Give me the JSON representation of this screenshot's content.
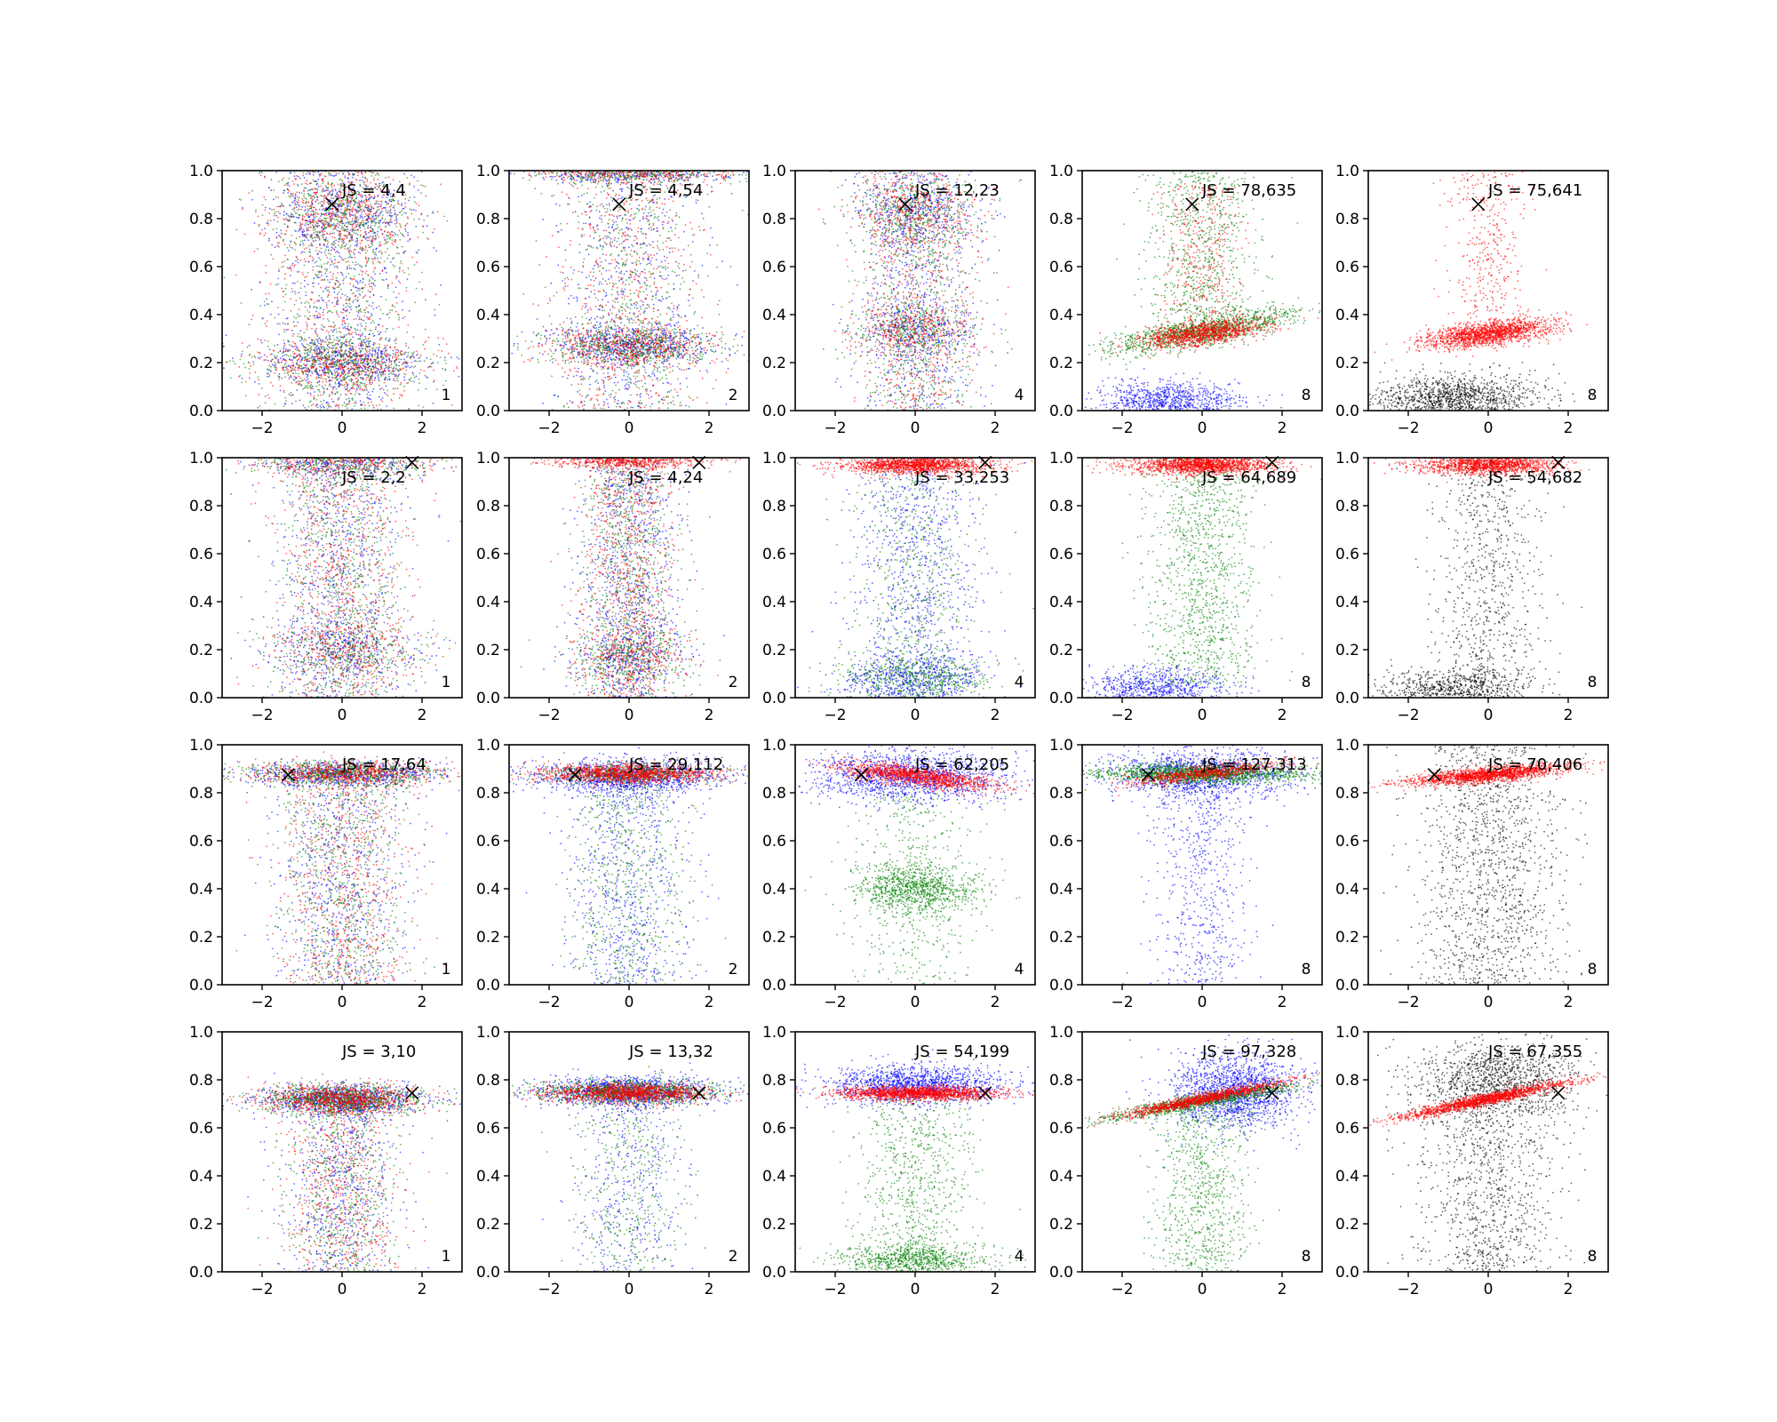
{
  "chart_data": {
    "type": "scatter",
    "grid": false,
    "xlim": [
      -3,
      3
    ],
    "ylim": [
      0,
      1
    ],
    "xticks": [
      "−2",
      "0",
      "2"
    ],
    "yticks": [
      "0.0",
      "0.2",
      "0.4",
      "0.6",
      "0.8",
      "1.0"
    ],
    "colors": {
      "blue": "#0000ff",
      "green": "#008000",
      "red": "#ff0000",
      "black": "#000000"
    },
    "rows": [
      {
        "marker": [
          -0.25,
          0.86
        ],
        "panels": [
          {
            "js_label": "JS = 4,4",
            "corner_label": "1"
          },
          {
            "js_label": "JS = 4,54",
            "corner_label": "2"
          },
          {
            "js_label": "JS = 12,23",
            "corner_label": "4"
          },
          {
            "js_label": "JS = 78,635",
            "corner_label": "8"
          },
          {
            "js_label": "JS = 75,641",
            "corner_label": "8"
          }
        ]
      },
      {
        "marker": [
          1.75,
          0.98
        ],
        "panels": [
          {
            "js_label": "JS = 2,2",
            "corner_label": "1"
          },
          {
            "js_label": "JS = 4,24",
            "corner_label": "2"
          },
          {
            "js_label": "JS = 33,253",
            "corner_label": "4"
          },
          {
            "js_label": "JS = 64,689",
            "corner_label": "8"
          },
          {
            "js_label": "JS = 54,682",
            "corner_label": "8"
          }
        ]
      },
      {
        "marker": [
          -1.35,
          0.875
        ],
        "panels": [
          {
            "js_label": "JS = 17,64",
            "corner_label": "1"
          },
          {
            "js_label": "JS = 29,112",
            "corner_label": "2"
          },
          {
            "js_label": "JS = 62,205",
            "corner_label": "4"
          },
          {
            "js_label": "JS = 127,313",
            "corner_label": "8"
          },
          {
            "js_label": "JS = 70,406",
            "corner_label": "8"
          }
        ]
      },
      {
        "marker": [
          1.75,
          0.745
        ],
        "panels": [
          {
            "js_label": "JS = 3,10",
            "corner_label": "1"
          },
          {
            "js_label": "JS = 13,32",
            "corner_label": "2"
          },
          {
            "js_label": "JS = 54,199",
            "corner_label": "4"
          },
          {
            "js_label": "JS = 97,328",
            "corner_label": "8"
          },
          {
            "js_label": "JS = 67,355",
            "corner_label": "8"
          }
        ]
      }
    ]
  }
}
